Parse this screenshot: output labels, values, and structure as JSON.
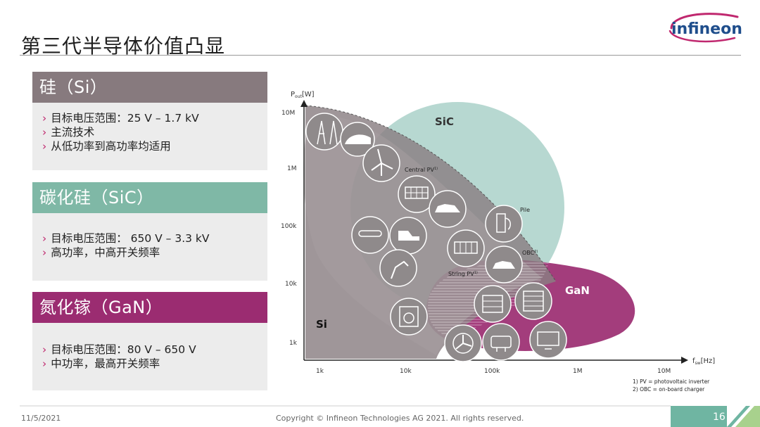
{
  "page_title": "第三代半导体价值凸显",
  "logo_text": "infineon",
  "panels": [
    {
      "header": "硅（Si）",
      "color": "#877a7e",
      "items": [
        "目标电压范围：25 V – 1.7 kV",
        "主流技术",
        "从低功率到高功率均适用"
      ]
    },
    {
      "header": "碳化硅（SiC）",
      "color": "#7fb8a6",
      "items": [
        "目标电压范围： 650 V – 3.3 kV",
        "高功率，中高开关频率"
      ]
    },
    {
      "header": "氮化镓（GaN）",
      "color": "#9b2c71",
      "items": [
        "目标电压范围：80 V – 650 V",
        "中功率，最高开关频率"
      ]
    }
  ],
  "diagram": {
    "y_axis_label": "P",
    "y_axis_sub": "out",
    "y_axis_unit": "[W]",
    "x_axis_label": "f",
    "x_axis_sub": "sw",
    "x_axis_unit": "[Hz]",
    "y_ticks": [
      "10M",
      "1M",
      "100k",
      "10k",
      "1k"
    ],
    "x_ticks": [
      "1k",
      "10k",
      "100k",
      "1M",
      "10M"
    ],
    "regions": {
      "si": "Si",
      "sic": "SiC",
      "gan": "GaN"
    },
    "app_labels": {
      "central_pv": "Central PV",
      "central_pv_sup": "1)",
      "pile": "Pile",
      "obc": "OBC",
      "obc_sup": "2)",
      "string_pv": "String PV",
      "string_pv_sup": "1)"
    },
    "footnotes": [
      "1) PV = photovoltaic inverter",
      "2) OBC = on-board charger"
    ],
    "colors": {
      "si": "#8a7f82",
      "sic": "#9fcbc2",
      "gan": "#9b2c71"
    }
  },
  "footer": {
    "date": "11/5/2021",
    "copyright": "Copyright © Infineon Technologies AG 2021. All rights reserved.",
    "page": "16"
  }
}
